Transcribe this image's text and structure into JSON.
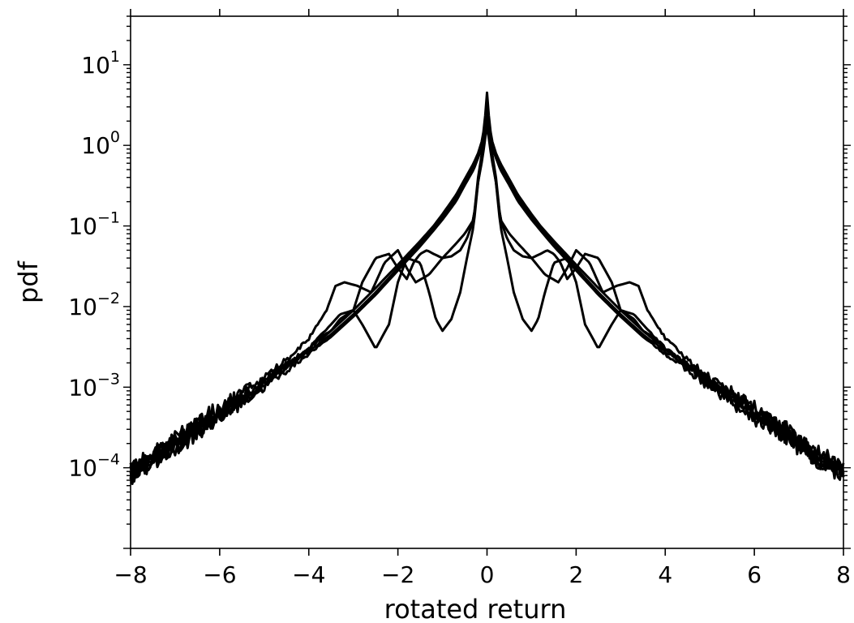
{
  "chart_data": {
    "type": "line",
    "title": "",
    "xlabel": "rotated return",
    "ylabel": "pdf",
    "xlim": [
      -8,
      8
    ],
    "ylim": [
      1e-05,
      40
    ],
    "yscale": "log",
    "grid": false,
    "legend": "none",
    "line_color": "#000000",
    "x_ticks": [
      -8,
      -6,
      -4,
      -2,
      0,
      2,
      4,
      6,
      8
    ],
    "x_tick_labels": [
      "−8",
      "−6",
      "−4",
      "−2",
      "0",
      "2",
      "4",
      "6",
      "8"
    ],
    "y_ticks": [
      0.0001,
      0.001,
      0.01,
      0.1,
      1,
      10
    ],
    "y_tick_labels": [
      {
        "base": "10",
        "exp": "−4"
      },
      {
        "base": "10",
        "exp": "−3"
      },
      {
        "base": "10",
        "exp": "−2"
      },
      {
        "base": "10",
        "exp": "−1"
      },
      {
        "base": "10",
        "exp": "0"
      },
      {
        "base": "10",
        "exp": "1"
      }
    ],
    "series": [
      {
        "x": [
          0,
          0.05,
          0.1,
          0.2,
          0.3,
          0.5,
          0.7,
          1.0,
          1.2,
          1.5,
          2.0,
          2.5,
          3.0,
          3.5,
          4.0,
          4.5,
          5.0,
          5.5,
          6.0,
          6.5,
          7.0,
          7.5,
          8.0
        ],
        "y": [
          3.0,
          1.6,
          1.1,
          0.75,
          0.55,
          0.35,
          0.22,
          0.13,
          0.095,
          0.06,
          0.03,
          0.015,
          0.008,
          0.0045,
          0.0028,
          0.0018,
          0.0011,
          0.0007,
          0.00045,
          0.0003,
          0.0002,
          0.00013,
          9e-05
        ]
      },
      {
        "x": [
          0,
          0.05,
          0.1,
          0.2,
          0.3,
          0.5,
          0.7,
          1.0,
          1.2,
          1.5,
          2.0,
          2.5,
          3.0,
          3.5,
          4.0,
          4.5,
          5.0,
          5.5,
          6.0,
          6.5,
          7.0,
          7.5,
          8.0
        ],
        "y": [
          4.5,
          2.0,
          1.2,
          0.8,
          0.6,
          0.38,
          0.24,
          0.14,
          0.1,
          0.065,
          0.033,
          0.017,
          0.009,
          0.005,
          0.003,
          0.0019,
          0.0012,
          0.0008,
          0.0005,
          0.00034,
          0.00022,
          0.00014,
          0.0001
        ]
      },
      {
        "x": [
          0,
          0.05,
          0.1,
          0.2,
          0.3,
          0.5,
          0.7,
          1.0,
          1.2,
          1.5,
          2.0,
          2.5,
          3.0,
          3.5,
          4.0,
          4.5,
          5.0,
          5.5,
          6.0,
          6.5,
          7.0,
          7.5,
          8.0
        ],
        "y": [
          2.5,
          1.4,
          1.0,
          0.7,
          0.5,
          0.32,
          0.2,
          0.12,
          0.088,
          0.056,
          0.028,
          0.014,
          0.0075,
          0.0042,
          0.0026,
          0.0016,
          0.001,
          0.00065,
          0.00042,
          0.00028,
          0.00018,
          0.00012,
          8e-05
        ]
      },
      {
        "x": [
          0,
          0.1,
          0.2,
          0.3,
          0.45,
          0.6,
          0.8,
          1.0,
          1.2,
          1.35,
          1.5,
          1.65,
          1.8,
          2.0,
          2.2,
          2.5,
          2.8,
          3.0,
          3.3,
          3.5,
          3.8,
          4.0,
          4.5,
          5.0,
          5.5,
          6.0,
          6.5,
          7.0,
          7.5,
          8.0
        ],
        "y": [
          2.2,
          0.9,
          0.4,
          0.12,
          0.07,
          0.05,
          0.042,
          0.04,
          0.045,
          0.05,
          0.045,
          0.035,
          0.022,
          0.03,
          0.045,
          0.04,
          0.02,
          0.009,
          0.008,
          0.006,
          0.004,
          0.003,
          0.0019,
          0.0012,
          0.0008,
          0.0005,
          0.00032,
          0.0002,
          0.00013,
          8e-05
        ]
      },
      {
        "x": [
          0,
          0.1,
          0.2,
          0.3,
          0.45,
          0.6,
          0.8,
          1.0,
          1.15,
          1.3,
          1.5,
          1.8,
          2.0,
          2.2,
          2.5,
          2.8,
          3.0,
          3.3,
          3.5,
          3.8,
          4.0,
          4.5,
          5.0,
          5.5,
          6.0,
          6.5,
          7.0,
          7.5,
          8.0
        ],
        "y": [
          2.0,
          0.8,
          0.35,
          0.1,
          0.04,
          0.015,
          0.007,
          0.005,
          0.007,
          0.015,
          0.035,
          0.04,
          0.02,
          0.006,
          0.003,
          0.006,
          0.009,
          0.007,
          0.005,
          0.004,
          0.003,
          0.0018,
          0.0011,
          0.0007,
          0.00045,
          0.0003,
          0.00019,
          0.00012,
          8e-05
        ]
      },
      {
        "x": [
          0,
          0.1,
          0.2,
          0.3,
          0.5,
          0.7,
          1.0,
          1.3,
          1.6,
          1.8,
          2.0,
          2.3,
          2.6,
          2.9,
          3.2,
          3.4,
          3.6,
          3.9,
          4.0,
          4.5,
          5.0,
          5.5,
          6.0,
          6.5,
          7.0,
          7.5,
          8.0
        ],
        "y": [
          1.8,
          0.7,
          0.35,
          0.12,
          0.08,
          0.06,
          0.04,
          0.025,
          0.02,
          0.03,
          0.05,
          0.035,
          0.015,
          0.018,
          0.02,
          0.018,
          0.009,
          0.005,
          0.004,
          0.0022,
          0.0013,
          0.00085,
          0.00055,
          0.00035,
          0.00022,
          0.00014,
          9e-05
        ]
      }
    ],
    "noise_amplitude_dex": 0.12
  }
}
